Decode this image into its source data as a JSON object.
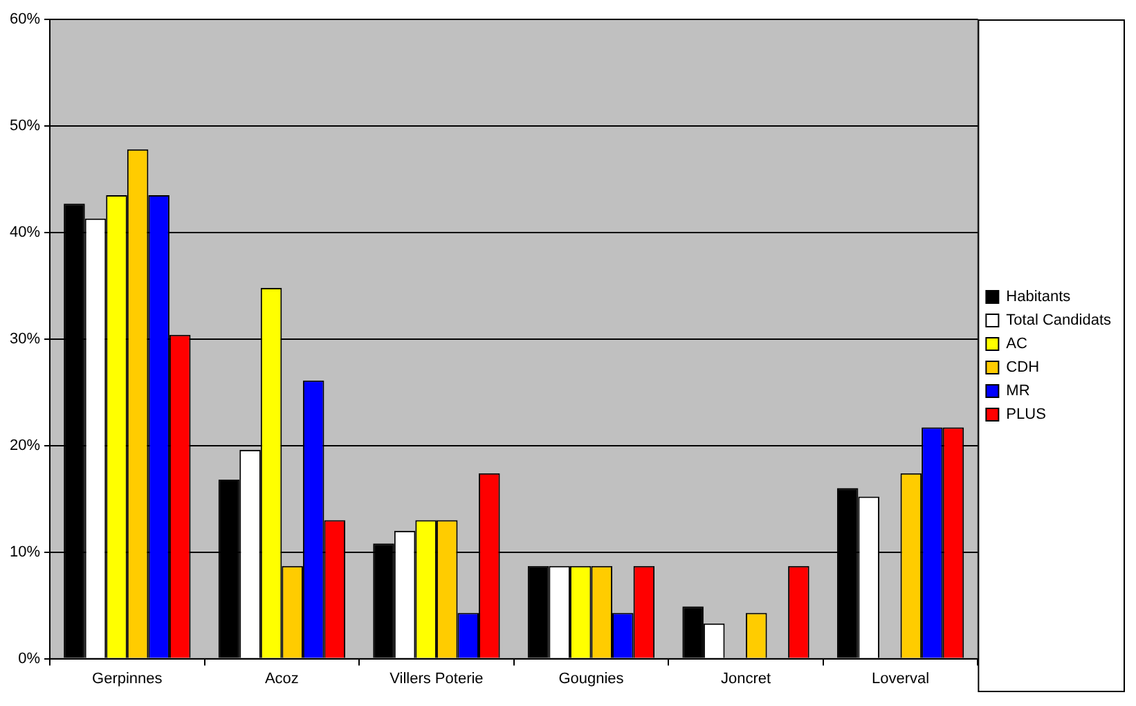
{
  "chart_data": {
    "type": "bar",
    "categories": [
      "Gerpinnes",
      "Acoz",
      "Villers Poterie",
      "Gougnies",
      "Joncret",
      "Loverval"
    ],
    "series": [
      {
        "name": "Habitants",
        "color": "#000000",
        "values": [
          42.7,
          16.8,
          10.8,
          8.7,
          4.9,
          16.0
        ]
      },
      {
        "name": "Total Candidats",
        "color": "#ffffff",
        "values": [
          41.3,
          19.6,
          12.0,
          8.7,
          3.3,
          15.2
        ]
      },
      {
        "name": "AC",
        "color": "#ffff00",
        "values": [
          43.5,
          34.8,
          13.0,
          8.7,
          0,
          0
        ]
      },
      {
        "name": "CDH",
        "color": "#ffcc00",
        "values": [
          47.8,
          8.7,
          13.0,
          8.7,
          4.3,
          17.4
        ]
      },
      {
        "name": "MR",
        "color": "#0000ff",
        "values": [
          43.5,
          26.1,
          4.3,
          4.3,
          0,
          21.7
        ]
      },
      {
        "name": "PLUS",
        "color": "#ff0000",
        "values": [
          30.4,
          13.0,
          17.4,
          8.7,
          8.7,
          21.7
        ]
      }
    ],
    "ylim": [
      0,
      60
    ],
    "yticks": [
      {
        "value": 0,
        "label": "0%"
      },
      {
        "value": 10,
        "label": "10%"
      },
      {
        "value": 20,
        "label": "20%"
      },
      {
        "value": 30,
        "label": "30%"
      },
      {
        "value": 40,
        "label": "40%"
      },
      {
        "value": 50,
        "label": "50%"
      },
      {
        "value": 60,
        "label": "60%"
      }
    ],
    "grid": "y",
    "legend": "right"
  }
}
